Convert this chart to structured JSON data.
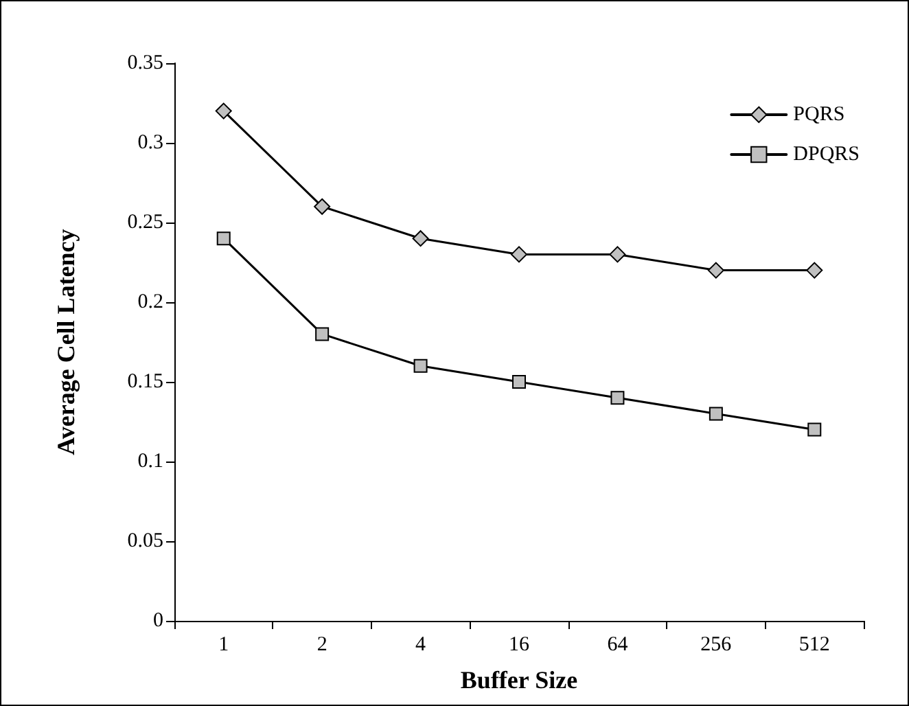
{
  "chart_data": {
    "type": "line",
    "xlabel": "Buffer Size",
    "ylabel": "Average Cell Latency",
    "categories": [
      "1",
      "2",
      "4",
      "16",
      "64",
      "256",
      "512"
    ],
    "series": [
      {
        "name": "PQRS",
        "color": "#000000",
        "marker": "diamond",
        "values": [
          0.32,
          0.26,
          0.24,
          0.23,
          0.23,
          0.22,
          0.22
        ]
      },
      {
        "name": "DPQRS",
        "color": "#000000",
        "marker": "square",
        "values": [
          0.24,
          0.18,
          0.16,
          0.15,
          0.14,
          0.13,
          0.12
        ]
      }
    ],
    "ylim": [
      0,
      0.35
    ],
    "yticks": [
      0,
      0.05,
      0.1,
      0.15,
      0.2,
      0.25,
      0.3,
      0.35
    ],
    "grid": false,
    "legend": "top right",
    "line_style": "solid"
  }
}
